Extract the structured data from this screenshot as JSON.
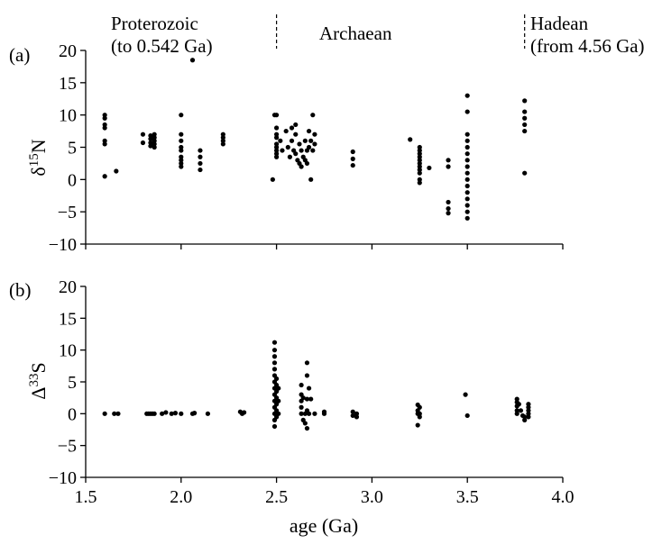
{
  "eras": [
    {
      "line1": "Proterozoic",
      "line2": "(to 0.542 Ga)"
    },
    {
      "line1": "Archaean",
      "line2": ""
    },
    {
      "line1": "Hadean",
      "line2": "(from 4.56 Ga)"
    }
  ],
  "era_boundaries_ga": [
    2.5,
    3.8
  ],
  "chart_data": [
    {
      "type": "scatter",
      "panel_label": "(a)",
      "ylabel": "δ15N",
      "ylabel_main": "δ",
      "ylabel_sup": "15",
      "ylabel_tail": "N",
      "xlim": [
        1.5,
        4.0
      ],
      "ylim": [
        -10,
        20
      ],
      "y_ticks": [
        -10,
        -5,
        0,
        5,
        10,
        15,
        20
      ],
      "points": [
        [
          1.6,
          10
        ],
        [
          1.6,
          9.5
        ],
        [
          1.6,
          8.5
        ],
        [
          1.6,
          8
        ],
        [
          1.6,
          6
        ],
        [
          1.6,
          5.5
        ],
        [
          1.6,
          0.5
        ],
        [
          1.66,
          1.3
        ],
        [
          1.8,
          7
        ],
        [
          1.8,
          5.7
        ],
        [
          1.84,
          6.8
        ],
        [
          1.84,
          6.3
        ],
        [
          1.84,
          5.7
        ],
        [
          1.84,
          5.2
        ],
        [
          1.86,
          7
        ],
        [
          1.86,
          6.5
        ],
        [
          1.86,
          6
        ],
        [
          1.86,
          5.5
        ],
        [
          1.86,
          5
        ],
        [
          2.0,
          10
        ],
        [
          2.0,
          7
        ],
        [
          2.0,
          6
        ],
        [
          2.0,
          5
        ],
        [
          2.0,
          4.5
        ],
        [
          2.0,
          3.5
        ],
        [
          2.0,
          3
        ],
        [
          2.0,
          2.5
        ],
        [
          2.0,
          2
        ],
        [
          2.06,
          18.5
        ],
        [
          2.1,
          4.5
        ],
        [
          2.1,
          3.5
        ],
        [
          2.1,
          2.5
        ],
        [
          2.1,
          1.5
        ],
        [
          2.22,
          7
        ],
        [
          2.22,
          6.5
        ],
        [
          2.22,
          6
        ],
        [
          2.22,
          5.5
        ],
        [
          2.48,
          0
        ],
        [
          2.49,
          10
        ],
        [
          2.5,
          10
        ],
        [
          2.5,
          8
        ],
        [
          2.5,
          7
        ],
        [
          2.5,
          6.5
        ],
        [
          2.5,
          5.5
        ],
        [
          2.5,
          5
        ],
        [
          2.5,
          4.5
        ],
        [
          2.5,
          4
        ],
        [
          2.5,
          3.5
        ],
        [
          2.52,
          6
        ],
        [
          2.53,
          4.5
        ],
        [
          2.55,
          7.5
        ],
        [
          2.56,
          5
        ],
        [
          2.57,
          3.5
        ],
        [
          2.58,
          8
        ],
        [
          2.58,
          6
        ],
        [
          2.59,
          4.5
        ],
        [
          2.6,
          8.5
        ],
        [
          2.6,
          7
        ],
        [
          2.6,
          4
        ],
        [
          2.61,
          3
        ],
        [
          2.62,
          5.5
        ],
        [
          2.62,
          2.5
        ],
        [
          2.63,
          4.5
        ],
        [
          2.63,
          2
        ],
        [
          2.64,
          3.5
        ],
        [
          2.65,
          6
        ],
        [
          2.65,
          3
        ],
        [
          2.66,
          4.5
        ],
        [
          2.66,
          2.5
        ],
        [
          2.67,
          7.5
        ],
        [
          2.67,
          5
        ],
        [
          2.68,
          6
        ],
        [
          2.68,
          0
        ],
        [
          2.69,
          10
        ],
        [
          2.69,
          4.5
        ],
        [
          2.7,
          7
        ],
        [
          2.7,
          5.5
        ],
        [
          2.9,
          4.3
        ],
        [
          2.9,
          3.2
        ],
        [
          2.9,
          2.2
        ],
        [
          3.2,
          6.2
        ],
        [
          3.25,
          5
        ],
        [
          3.25,
          4.5
        ],
        [
          3.25,
          4
        ],
        [
          3.25,
          3.5
        ],
        [
          3.25,
          3
        ],
        [
          3.25,
          2.5
        ],
        [
          3.25,
          2
        ],
        [
          3.25,
          1.5
        ],
        [
          3.25,
          1
        ],
        [
          3.25,
          0
        ],
        [
          3.25,
          -0.5
        ],
        [
          3.3,
          1.8
        ],
        [
          3.4,
          3
        ],
        [
          3.4,
          2
        ],
        [
          3.4,
          -3.5
        ],
        [
          3.4,
          -4.5
        ],
        [
          3.4,
          -5.2
        ],
        [
          3.5,
          13
        ],
        [
          3.5,
          10.5
        ],
        [
          3.5,
          7
        ],
        [
          3.5,
          6
        ],
        [
          3.5,
          5
        ],
        [
          3.5,
          4
        ],
        [
          3.5,
          3
        ],
        [
          3.5,
          2
        ],
        [
          3.5,
          1
        ],
        [
          3.5,
          0
        ],
        [
          3.5,
          -1
        ],
        [
          3.5,
          -2
        ],
        [
          3.5,
          -3
        ],
        [
          3.5,
          -4
        ],
        [
          3.5,
          -5
        ],
        [
          3.5,
          -6
        ],
        [
          3.8,
          12.2
        ],
        [
          3.8,
          10.5
        ],
        [
          3.8,
          9.5
        ],
        [
          3.8,
          8.5
        ],
        [
          3.8,
          7.5
        ],
        [
          3.8,
          1
        ]
      ]
    },
    {
      "type": "scatter",
      "panel_label": "(b)",
      "xlabel": "age (Ga)",
      "ylabel": "Δ33S",
      "ylabel_main": "Δ",
      "ylabel_sup": "33",
      "ylabel_tail": "S",
      "xlim": [
        1.5,
        4.0
      ],
      "ylim": [
        -10,
        20
      ],
      "y_ticks": [
        -10,
        -5,
        0,
        5,
        10,
        15,
        20
      ],
      "x_ticks": [
        1.5,
        2.0,
        2.5,
        3.0,
        3.5,
        4.0
      ],
      "x_tick_labels": [
        "1.5",
        "2.0",
        "2.5",
        "3.0",
        "3.5",
        "4.0"
      ],
      "points": [
        [
          1.6,
          0
        ],
        [
          1.65,
          0
        ],
        [
          1.67,
          0
        ],
        [
          1.82,
          0
        ],
        [
          1.83,
          0
        ],
        [
          1.84,
          0
        ],
        [
          1.85,
          0
        ],
        [
          1.86,
          0
        ],
        [
          1.9,
          0
        ],
        [
          1.92,
          0.2
        ],
        [
          1.95,
          0
        ],
        [
          1.97,
          0.1
        ],
        [
          2.0,
          0
        ],
        [
          2.06,
          0
        ],
        [
          2.07,
          0.1
        ],
        [
          2.14,
          0
        ],
        [
          2.31,
          0.3
        ],
        [
          2.32,
          0
        ],
        [
          2.33,
          0.2
        ],
        [
          2.49,
          11.2
        ],
        [
          2.49,
          10
        ],
        [
          2.49,
          9
        ],
        [
          2.49,
          8
        ],
        [
          2.49,
          7
        ],
        [
          2.49,
          6
        ],
        [
          2.49,
          5
        ],
        [
          2.49,
          4
        ],
        [
          2.49,
          3
        ],
        [
          2.49,
          2
        ],
        [
          2.49,
          1
        ],
        [
          2.49,
          0
        ],
        [
          2.49,
          -1
        ],
        [
          2.49,
          -2
        ],
        [
          2.5,
          5.5
        ],
        [
          2.5,
          4.5
        ],
        [
          2.5,
          3.5
        ],
        [
          2.5,
          2.5
        ],
        [
          2.5,
          1.5
        ],
        [
          2.5,
          0.5
        ],
        [
          2.5,
          -0.5
        ],
        [
          2.51,
          4
        ],
        [
          2.51,
          2
        ],
        [
          2.51,
          0
        ],
        [
          2.63,
          4.5
        ],
        [
          2.63,
          3
        ],
        [
          2.63,
          2
        ],
        [
          2.63,
          1
        ],
        [
          2.63,
          0
        ],
        [
          2.64,
          2.5
        ],
        [
          2.64,
          -1
        ],
        [
          2.65,
          0
        ],
        [
          2.65,
          -1.5
        ],
        [
          2.66,
          8
        ],
        [
          2.66,
          6
        ],
        [
          2.66,
          2.3
        ],
        [
          2.66,
          0.5
        ],
        [
          2.66,
          -2.3
        ],
        [
          2.67,
          4
        ],
        [
          2.67,
          0
        ],
        [
          2.68,
          2.3
        ],
        [
          2.7,
          0
        ],
        [
          2.75,
          0.3
        ],
        [
          2.75,
          0
        ],
        [
          2.9,
          0.3
        ],
        [
          2.9,
          -0.3
        ],
        [
          2.92,
          0
        ],
        [
          2.92,
          -0.5
        ],
        [
          3.24,
          1.4
        ],
        [
          3.24,
          0.5
        ],
        [
          3.24,
          0
        ],
        [
          3.24,
          -1.8
        ],
        [
          3.25,
          1
        ],
        [
          3.25,
          0
        ],
        [
          3.25,
          -0.5
        ],
        [
          3.49,
          3
        ],
        [
          3.5,
          -0.3
        ],
        [
          3.76,
          2.3
        ],
        [
          3.76,
          1.8
        ],
        [
          3.76,
          1.2
        ],
        [
          3.76,
          0.5
        ],
        [
          3.76,
          0
        ],
        [
          3.77,
          1.5
        ],
        [
          3.78,
          0.5
        ],
        [
          3.79,
          -0.3
        ],
        [
          3.8,
          -0.5
        ],
        [
          3.8,
          -1
        ],
        [
          3.82,
          1.5
        ],
        [
          3.82,
          1
        ],
        [
          3.82,
          0.5
        ],
        [
          3.82,
          0
        ],
        [
          3.82,
          -0.5
        ]
      ]
    }
  ]
}
